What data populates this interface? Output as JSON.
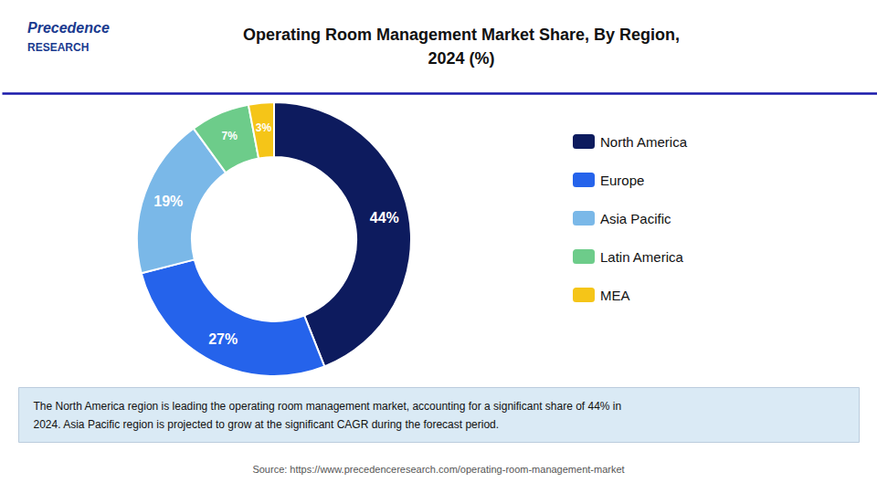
{
  "chart_data": {
    "type": "pie",
    "title": "Operating Room Management Market Share, By Region,\n2024 (%)",
    "categories": [
      "North America",
      "Europe",
      "Asia Pacific",
      "Latin America",
      "MEA"
    ],
    "values": [
      44,
      27,
      19,
      7,
      3
    ],
    "value_labels": [
      "44%",
      "27%",
      "19%",
      "7%",
      "3%"
    ],
    "colors": [
      "#0d1b5e",
      "#2563eb",
      "#7ab8e8",
      "#6dcc8a",
      "#f5c518"
    ],
    "data_labels": true,
    "legend": "right",
    "annotations": [
      "Precedence",
      "RESEARCH",
      "The North America region is leading the operating room management market, accounting for a significant share of 44% in\n2024. Asia Pacific region is projected to grow at the significant CAGR during the forecast period.",
      "Source: https://www.precedenceresearch.com/operating-room-management-market"
    ]
  }
}
